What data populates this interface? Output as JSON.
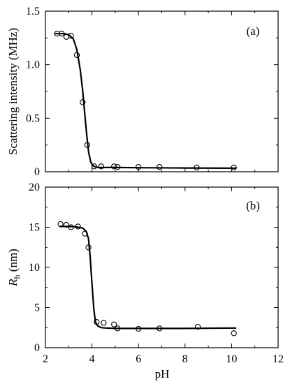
{
  "chart_data": [
    {
      "type": "scatter",
      "panel_label": "(a)",
      "xlabel": "",
      "ylabel": "Scattering intensity (MHz)",
      "xlim": [
        2,
        12
      ],
      "ylim": [
        0,
        1.5
      ],
      "xticks": [
        2,
        4,
        6,
        8,
        10,
        12
      ],
      "yticks": [
        0,
        0.5,
        1.0,
        1.5
      ],
      "ytick_labels": [
        "0",
        "0.5",
        "1.0",
        "1.5"
      ],
      "show_x_tick_labels": false,
      "series": [
        {
          "kind": "markers",
          "marker": "open-circle",
          "x": [
            2.5,
            2.7,
            2.9,
            3.1,
            3.35,
            3.6,
            3.8,
            4.1,
            4.4,
            4.95,
            5.1,
            6.0,
            6.9,
            8.5,
            10.1
          ],
          "y": [
            1.29,
            1.29,
            1.26,
            1.27,
            1.09,
            0.65,
            0.25,
            0.05,
            0.05,
            0.05,
            0.045,
            0.045,
            0.045,
            0.04,
            0.04
          ]
        },
        {
          "kind": "fit-line",
          "x": [
            2.4,
            2.8,
            3.0,
            3.2,
            3.35,
            3.5,
            3.6,
            3.7,
            3.78,
            3.86,
            3.95,
            4.05,
            4.15,
            4.3,
            4.6,
            5.0,
            6.0,
            8.0,
            10.0,
            10.2
          ],
          "y": [
            1.29,
            1.29,
            1.28,
            1.24,
            1.14,
            0.95,
            0.76,
            0.52,
            0.33,
            0.18,
            0.09,
            0.055,
            0.045,
            0.04,
            0.04,
            0.04,
            0.038,
            0.035,
            0.033,
            0.033
          ]
        }
      ]
    },
    {
      "type": "scatter",
      "panel_label": "(b)",
      "xlabel": "pH",
      "ylabel_main": "R",
      "ylabel_sub": "h",
      "ylabel_unit": " (nm)",
      "xlim": [
        2,
        12
      ],
      "ylim": [
        0,
        20
      ],
      "xticks": [
        2,
        4,
        6,
        8,
        10,
        12
      ],
      "xtick_labels": [
        "2",
        "4",
        "6",
        "8",
        "10",
        "12"
      ],
      "yticks": [
        0,
        5,
        10,
        15,
        20
      ],
      "ytick_labels": [
        "0",
        "5",
        "10",
        "15",
        "20"
      ],
      "show_x_tick_labels": true,
      "series": [
        {
          "kind": "markers",
          "marker": "open-circle",
          "x": [
            2.65,
            2.9,
            3.1,
            3.4,
            3.7,
            3.85,
            4.2,
            4.5,
            4.95,
            5.1,
            6.0,
            6.9,
            8.55,
            10.1
          ],
          "y": [
            15.4,
            15.3,
            15.0,
            15.1,
            14.2,
            12.5,
            3.2,
            3.1,
            2.9,
            2.4,
            2.35,
            2.4,
            2.6,
            1.8
          ]
        },
        {
          "kind": "fit-line",
          "x": [
            2.6,
            3.0,
            3.3,
            3.6,
            3.75,
            3.85,
            3.92,
            4.0,
            4.08,
            4.15,
            4.25,
            4.4,
            4.6,
            5.0,
            6.0,
            8.0,
            10.2
          ],
          "y": [
            15.1,
            15.1,
            15.05,
            14.9,
            14.5,
            13.6,
            11.5,
            8.0,
            4.8,
            3.2,
            2.7,
            2.5,
            2.45,
            2.4,
            2.4,
            2.4,
            2.45
          ]
        }
      ]
    }
  ]
}
